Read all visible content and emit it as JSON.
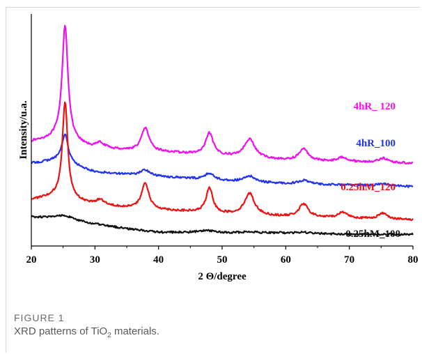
{
  "chart_data": {
    "type": "line",
    "xlabel": "2 Θ/degree",
    "ylabel": "Intensity/u.a.",
    "xlim": [
      20,
      80
    ],
    "xticks": [
      "20",
      "30",
      "40",
      "50",
      "60",
      "70",
      "80"
    ],
    "yticks": "none",
    "grid": false,
    "legend": "inline labels at right",
    "series": [
      {
        "name": "4hR_ 120",
        "color": "#ee11ee",
        "baseline": [
          [
            20,
            0.62
          ],
          [
            24,
            0.64
          ],
          [
            30,
            0.57
          ],
          [
            40,
            0.55
          ],
          [
            50,
            0.52
          ],
          [
            60,
            0.49
          ],
          [
            70,
            0.48
          ],
          [
            80,
            0.47
          ]
        ],
        "peaks": [
          [
            25.3,
            0.8,
            0.55
          ],
          [
            30.8,
            0.04,
            0.9
          ],
          [
            37.9,
            0.16,
            0.7
          ],
          [
            48.0,
            0.15,
            0.7
          ],
          [
            54.3,
            0.13,
            1.0
          ],
          [
            62.8,
            0.08,
            0.9
          ],
          [
            69.0,
            0.03,
            0.9
          ],
          [
            75.3,
            0.03,
            0.9
          ]
        ]
      },
      {
        "name": "4hR_100",
        "color": "#2233ee",
        "baseline": [
          [
            20,
            0.47
          ],
          [
            24,
            0.49
          ],
          [
            30,
            0.41
          ],
          [
            40,
            0.38
          ],
          [
            50,
            0.35
          ],
          [
            60,
            0.33
          ],
          [
            70,
            0.32
          ],
          [
            80,
            0.31
          ]
        ],
        "peaks": [
          [
            25.3,
            0.2,
            0.6
          ],
          [
            37.9,
            0.04,
            0.8
          ],
          [
            48.0,
            0.045,
            0.9
          ],
          [
            54.3,
            0.04,
            1.0
          ],
          [
            62.8,
            0.025,
            1.0
          ],
          [
            75.3,
            0.015,
            1.0
          ]
        ]
      },
      {
        "name": "0.25hM_120",
        "color": "#ee1111",
        "baseline": [
          [
            20,
            0.22
          ],
          [
            24,
            0.24
          ],
          [
            30,
            0.18
          ],
          [
            40,
            0.15
          ],
          [
            50,
            0.12
          ],
          [
            60,
            0.1
          ],
          [
            70,
            0.09
          ],
          [
            80,
            0.08
          ]
        ],
        "peaks": [
          [
            25.3,
            0.67,
            0.5
          ],
          [
            30.8,
            0.04,
            0.9
          ],
          [
            37.9,
            0.18,
            0.65
          ],
          [
            48.0,
            0.17,
            0.65
          ],
          [
            54.3,
            0.15,
            0.95
          ],
          [
            62.8,
            0.09,
            0.9
          ],
          [
            69.0,
            0.04,
            0.9
          ],
          [
            75.3,
            0.04,
            0.9
          ]
        ]
      },
      {
        "name": "0.25hM_100",
        "color": "#111111",
        "baseline": [
          [
            20,
            0.1
          ],
          [
            24,
            0.09
          ],
          [
            27,
            0.07
          ],
          [
            30,
            0.05
          ],
          [
            35,
            0.02
          ],
          [
            40,
            -0.005
          ],
          [
            50,
            -0.01
          ],
          [
            60,
            -0.01
          ],
          [
            70,
            -0.02
          ],
          [
            80,
            -0.02
          ]
        ],
        "peaks": [
          [
            25.3,
            0.03,
            1.5
          ],
          [
            47.5,
            0.015,
            1.5
          ],
          [
            54.3,
            0.008,
            1.5
          ],
          [
            62.8,
            0.006,
            1.5
          ]
        ]
      }
    ]
  },
  "caption": {
    "label": "FIGURE 1",
    "text_before": "XRD patterns of TiO",
    "text_sub": "2",
    "text_after": " materials."
  }
}
